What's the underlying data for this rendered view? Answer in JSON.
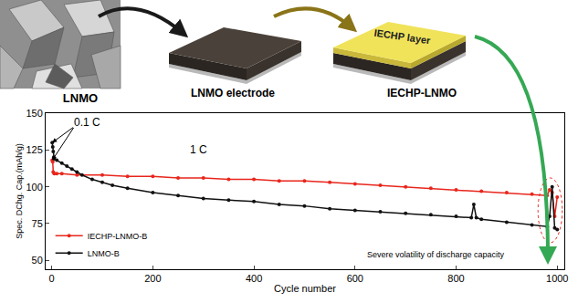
{
  "diagram": {
    "labels": {
      "material": "LNMO",
      "electrode": "LNMO electrode",
      "layer": "IECHP layer",
      "coated": "IECHP-LNMO"
    }
  },
  "chart_data": {
    "type": "line",
    "x_label": "Cycle number",
    "y_label": "Spec. DChg. Cap.(mAh/g)",
    "xlim": [
      -12,
      1014
    ],
    "xticks": [
      0,
      200,
      400,
      600,
      800,
      1000
    ],
    "ylim": [
      44,
      150
    ],
    "yticks": [
      50,
      75,
      100,
      125,
      150
    ],
    "legend": "lower left",
    "grid": false,
    "series": [
      {
        "name": "IECHP-LNMO-B",
        "color": "#e8261c",
        "marker": "circle",
        "x": [
          1,
          2,
          3,
          5,
          10,
          20,
          50,
          100,
          150,
          200,
          250,
          300,
          350,
          400,
          450,
          500,
          550,
          600,
          650,
          700,
          750,
          800,
          850,
          900,
          950,
          980,
          985,
          990,
          995,
          1000
        ],
        "values": [
          118,
          117,
          110,
          109,
          109,
          109,
          108,
          108,
          107,
          107,
          106,
          106,
          105,
          105,
          104,
          104,
          103,
          102,
          101,
          100,
          99,
          98,
          97,
          96,
          95,
          94,
          98,
          96,
          80,
          93
        ]
      },
      {
        "name": "LNMO-B",
        "color": "#111111",
        "marker": "circle",
        "x": [
          1,
          2,
          3,
          4,
          5,
          10,
          20,
          30,
          40,
          50,
          60,
          80,
          100,
          120,
          150,
          200,
          250,
          300,
          350,
          400,
          450,
          500,
          550,
          600,
          650,
          700,
          750,
          800,
          830,
          835,
          840,
          850,
          900,
          950,
          980,
          985,
          990,
          995,
          1000
        ],
        "values": [
          130,
          127,
          124,
          120,
          119,
          118,
          116,
          114,
          112,
          110,
          108,
          105,
          103,
          101,
          99,
          96,
          94,
          92,
          91,
          90,
          88,
          87,
          85,
          84,
          83,
          82,
          81,
          80,
          79,
          88,
          79,
          78,
          76,
          74,
          73,
          80,
          100,
          72,
          71
        ]
      }
    ],
    "annotations": [
      {
        "text": "0.1 C",
        "x": 40,
        "y": 144
      },
      {
        "text": "1 C",
        "x": 270,
        "y": 125
      },
      {
        "text": "Severe volatility of discharge capacity",
        "x": 760,
        "y": 54
      }
    ],
    "highlight": {
      "x": [
        962,
        1010
      ],
      "y": [
        62,
        106
      ]
    }
  }
}
